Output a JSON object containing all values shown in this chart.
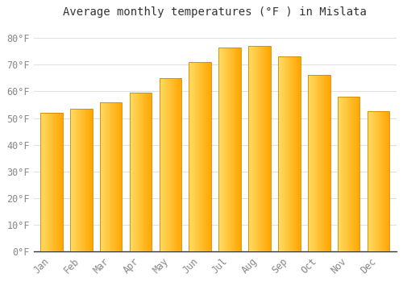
{
  "title": "Average monthly temperatures (°F ) in Mislata",
  "months": [
    "Jan",
    "Feb",
    "Mar",
    "Apr",
    "May",
    "Jun",
    "Jul",
    "Aug",
    "Sep",
    "Oct",
    "Nov",
    "Dec"
  ],
  "values": [
    52,
    53.5,
    56,
    59.5,
    65,
    71,
    76.5,
    77,
    73,
    66,
    58,
    52.5
  ],
  "bar_color_left": "#FFD966",
  "bar_color_right": "#FFA500",
  "bar_edge_color": "#CC8800",
  "ylim": [
    0,
    85
  ],
  "yticks": [
    0,
    10,
    20,
    30,
    40,
    50,
    60,
    70,
    80
  ],
  "ytick_labels": [
    "0°F",
    "10°F",
    "20°F",
    "30°F",
    "40°F",
    "50°F",
    "60°F",
    "70°F",
    "80°F"
  ],
  "background_color": "#ffffff",
  "plot_bg_color": "#ffffff",
  "grid_color": "#e0e0e0",
  "title_fontsize": 10,
  "tick_fontsize": 8.5,
  "bar_width": 0.75,
  "title_color": "#333333",
  "tick_color": "#888888"
}
